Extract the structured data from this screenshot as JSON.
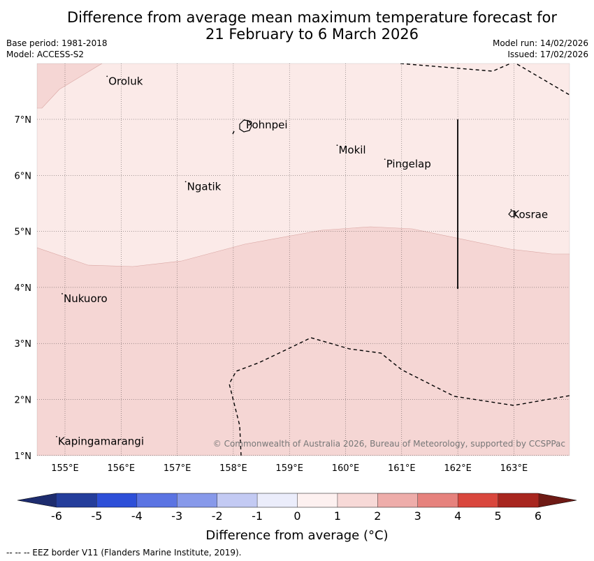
{
  "title": {
    "line1": "Difference from average mean maximum temperature forecast for",
    "line2": "21 February to 6 March 2026"
  },
  "meta": {
    "base_period": "Base period: 1981-2018",
    "model": "Model: ACCESS-S2",
    "model_run": "Model run: 14/02/2026",
    "issued": "Issued: 17/02/2026"
  },
  "map": {
    "lon_ticks": [
      "155°E",
      "156°E",
      "157°E",
      "158°E",
      "159°E",
      "160°E",
      "161°E",
      "162°E",
      "163°E"
    ],
    "lat_ticks": [
      "7°N",
      "6°N",
      "5°N",
      "4°N",
      "3°N",
      "2°N",
      "1°N"
    ],
    "places": [
      {
        "name": "Oroluk",
        "lon": 155.75,
        "lat": 7.68
      },
      {
        "name": "Pohnpei",
        "lon": 158.2,
        "lat": 6.9
      },
      {
        "name": "Mokil",
        "lon": 159.85,
        "lat": 6.45
      },
      {
        "name": "Pingelap",
        "lon": 160.7,
        "lat": 6.2
      },
      {
        "name": "Ngatik",
        "lon": 157.15,
        "lat": 5.8
      },
      {
        "name": "Kosrae",
        "lon": 162.95,
        "lat": 5.3
      },
      {
        "name": "Nukuoro",
        "lon": 154.95,
        "lat": 3.8
      },
      {
        "name": "Kapingamarangi",
        "lon": 154.85,
        "lat": 1.25
      }
    ],
    "copyright": "© Commonwealth of Australia 2026, Bureau of Meteorology, supported by CCSPPac",
    "fill_colors": {
      "zero_to_one": "#fbeae8",
      "one_to_two": "#f5d6d4",
      "boundary": "#d9a5a2"
    }
  },
  "colorbar": {
    "ticks": [
      "-6",
      "-5",
      "-4",
      "-3",
      "-2",
      "-1",
      "0",
      "1",
      "2",
      "3",
      "4",
      "5",
      "6"
    ],
    "colors": [
      "#243d9b",
      "#2d4fd8",
      "#5b74e3",
      "#8799ea",
      "#c3caf3",
      "#ebedfb",
      "#fdf1f0",
      "#f7d9d7",
      "#eeadaa",
      "#e6827d",
      "#d9473d",
      "#a8261f"
    ],
    "under_color": "#1d2c6e",
    "over_color": "#6e1a15",
    "label": "Difference from average (°C)"
  },
  "footnote": "--  --  -- EEZ border V11 (Flanders Marine Institute, 2019)."
}
